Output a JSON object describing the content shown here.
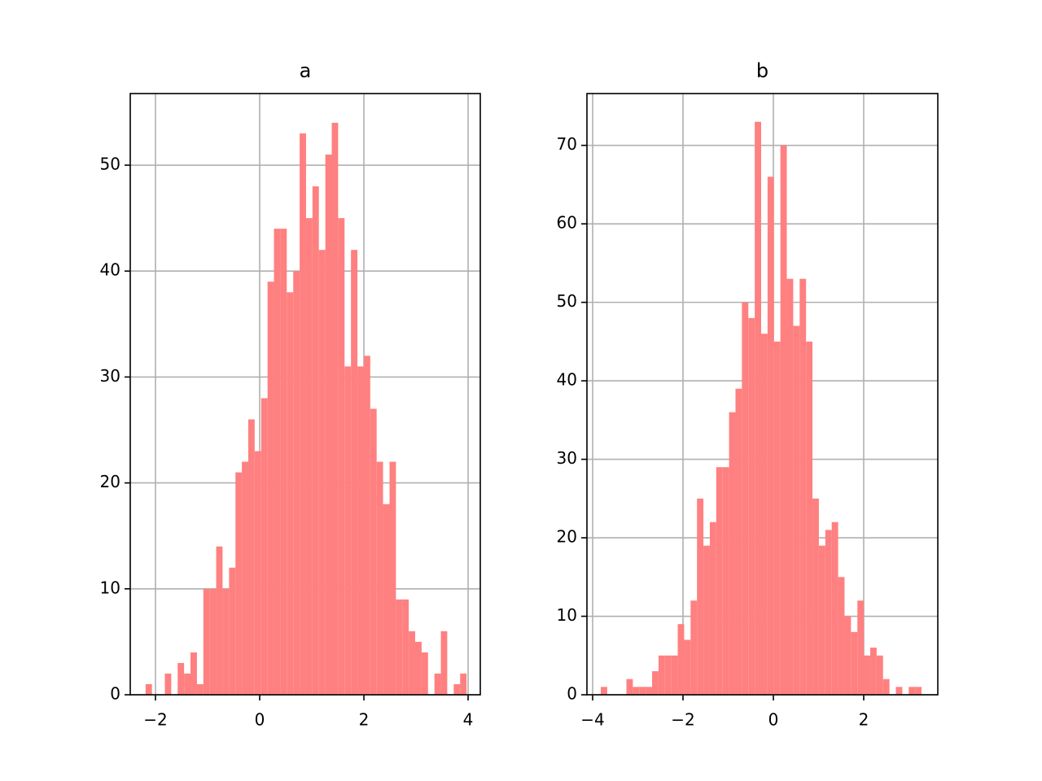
{
  "chart_data": [
    {
      "type": "histogram",
      "title": "a",
      "color": "#ff8080",
      "grid": true,
      "bins": [
        -2.19,
        -2.067,
        -1.944,
        -1.82,
        -1.697,
        -1.574,
        -1.451,
        -1.328,
        -1.204,
        -1.081,
        -0.958,
        -0.835,
        -0.712,
        -0.588,
        -0.465,
        -0.342,
        -0.219,
        -0.096,
        0.028,
        0.151,
        0.274,
        0.397,
        0.52,
        0.644,
        0.767,
        0.89,
        1.013,
        1.136,
        1.26,
        1.383,
        1.506,
        1.629,
        1.752,
        1.876,
        1.999,
        2.122,
        2.245,
        2.368,
        2.492,
        2.615,
        2.738,
        2.861,
        2.984,
        3.108,
        3.231,
        3.354,
        3.477,
        3.6,
        3.724,
        3.847,
        3.97
      ],
      "values": [
        1,
        0,
        0,
        2,
        0,
        3,
        2,
        4,
        1,
        10,
        10,
        14,
        10,
        12,
        21,
        22,
        26,
        23,
        28,
        39,
        44,
        44,
        38,
        40,
        53,
        45,
        48,
        42,
        51,
        54,
        45,
        31,
        42,
        31,
        32,
        27,
        22,
        18,
        22,
        9,
        9,
        6,
        5,
        4,
        0,
        2,
        6,
        0,
        1,
        2
      ],
      "xlim": [
        -2.484,
        4.234
      ],
      "ylim": [
        0,
        56.76
      ],
      "xticks": [
        {
          "value": -2,
          "label": "−2"
        },
        0,
        2,
        4
      ],
      "yticks": [
        0,
        10,
        20,
        30,
        40,
        50
      ]
    },
    {
      "type": "histogram",
      "title": "b",
      "color": "#ff8080",
      "grid": true,
      "bins": [
        -3.82,
        -3.678,
        -3.536,
        -3.394,
        -3.252,
        -3.11,
        -2.968,
        -2.826,
        -2.684,
        -2.542,
        -2.4,
        -2.258,
        -2.116,
        -1.974,
        -1.832,
        -1.69,
        -1.548,
        -1.406,
        -1.264,
        -1.122,
        -0.98,
        -0.838,
        -0.696,
        -0.554,
        -0.412,
        -0.27,
        -0.128,
        0.014,
        0.156,
        0.298,
        0.44,
        0.582,
        0.724,
        0.866,
        1.008,
        1.15,
        1.292,
        1.434,
        1.576,
        1.718,
        1.86,
        2.002,
        2.144,
        2.286,
        2.428,
        2.57,
        2.712,
        2.854,
        2.996,
        3.138,
        3.28
      ],
      "values": [
        1,
        0,
        0,
        0,
        2,
        1,
        1,
        1,
        3,
        5,
        5,
        5,
        9,
        7,
        12,
        25,
        19,
        22,
        29,
        29,
        36,
        39,
        50,
        48,
        73,
        46,
        66,
        45,
        70,
        53,
        47,
        53,
        45,
        25,
        19,
        21,
        22,
        15,
        10,
        8,
        12,
        5,
        6,
        5,
        2,
        0,
        1,
        0,
        1,
        1
      ],
      "xlim": [
        -4.126,
        3.64
      ],
      "ylim": [
        0,
        76.6
      ],
      "xticks": [
        {
          "value": -4,
          "label": "−4"
        },
        {
          "value": -2,
          "label": "−2"
        },
        0,
        2
      ],
      "yticks": [
        0,
        10,
        20,
        30,
        40,
        50,
        60,
        70
      ]
    }
  ]
}
